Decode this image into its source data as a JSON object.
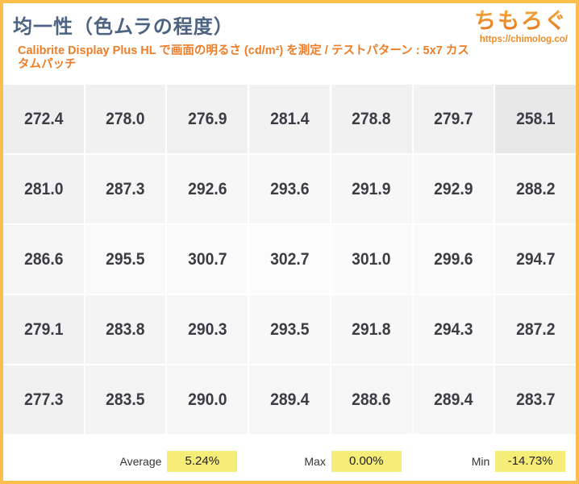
{
  "header": {
    "title": "均一性（色ムラの程度）",
    "subtitle": "Calibrite Display Plus HL で画面の明るさ (cd/m²) を測定 / テストパターン : 5x7 カスタムパッチ",
    "logo": {
      "name": "ちもろぐ",
      "url": "https://chimolog.co/"
    }
  },
  "chart_data": {
    "type": "heatmap",
    "title": "均一性（色ムラの程度）",
    "unit": "cd/m²",
    "rows": 5,
    "cols": 7,
    "values": [
      [
        272.4,
        278.0,
        276.9,
        281.4,
        278.8,
        279.7,
        258.1
      ],
      [
        281.0,
        287.3,
        292.6,
        293.6,
        291.9,
        292.9,
        288.2
      ],
      [
        286.6,
        295.5,
        300.7,
        302.7,
        301.0,
        299.6,
        294.7
      ],
      [
        279.1,
        283.8,
        290.3,
        293.5,
        291.8,
        294.3,
        287.2
      ],
      [
        277.3,
        283.5,
        290.0,
        289.4,
        288.6,
        289.4,
        283.7
      ]
    ],
    "color_scale": {
      "min_value": 258.1,
      "max_value": 302.7,
      "min_color": "#e8e8e8",
      "max_color": "#fcfcfc"
    }
  },
  "stats": [
    {
      "label": "Average",
      "value": "5.24%"
    },
    {
      "label": "Max",
      "value": "0.00%"
    },
    {
      "label": "Min",
      "value": "-14.73%"
    }
  ],
  "colors": {
    "frame_border": "#fbbe4b",
    "title_text": "#4d6382",
    "subtitle_orange": "#ee7d28",
    "logo_orange": "#ef8c1f",
    "cell_text": "#3c3c44",
    "stat_highlight_yellow": "#f6ec78"
  }
}
